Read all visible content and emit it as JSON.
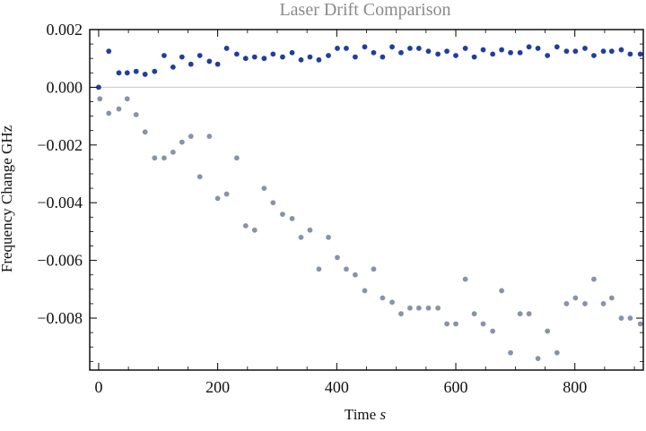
{
  "chart_data": {
    "type": "scatter",
    "title": "Laser Drift Comparison",
    "xlabel": "Time",
    "xlabel_unit": "s",
    "ylabel": "Frequency Change GHz",
    "xlim": [
      -15,
      915
    ],
    "ylim": [
      -0.0098,
      0.002
    ],
    "x_ticks": [
      0,
      200,
      400,
      600,
      800
    ],
    "x_tick_labels": [
      "0",
      "200",
      "400",
      "600",
      "800"
    ],
    "y_ticks": [
      0.002,
      0.0,
      -0.002,
      -0.004,
      -0.006,
      -0.008
    ],
    "y_tick_labels": [
      "0.002",
      "0.000",
      "−0.002",
      "−0.004",
      "−0.006",
      "−0.008"
    ],
    "zero_line": true,
    "grid": false,
    "colors": {
      "series1": "#1f3f9a",
      "series2": "#8793a8",
      "zero_line": "#c8c8c8",
      "frame": "#000000"
    },
    "series": [
      {
        "x": [
          0,
          17,
          34,
          48,
          63,
          78,
          94,
          110,
          125,
          140,
          155,
          170,
          186,
          200,
          215,
          232,
          247,
          262,
          278,
          293,
          309,
          325,
          340,
          355,
          370,
          386,
          401,
          416,
          431,
          447,
          462,
          477,
          493,
          508,
          523,
          538,
          554,
          570,
          585,
          600,
          616,
          631,
          646,
          662,
          677,
          692,
          708,
          723,
          738,
          754,
          770,
          786,
          801,
          817,
          832,
          848,
          862,
          878,
          893,
          910
        ],
        "y": [
          0.0,
          0.00125,
          0.0005,
          0.0005,
          0.00055,
          0.00045,
          0.00055,
          0.0011,
          0.0007,
          0.00105,
          0.0008,
          0.0011,
          0.0009,
          0.0008,
          0.00135,
          0.00115,
          0.001,
          0.00105,
          0.001,
          0.00115,
          0.00105,
          0.0012,
          0.00095,
          0.00105,
          0.00095,
          0.0011,
          0.00135,
          0.00135,
          0.00105,
          0.0014,
          0.0012,
          0.00105,
          0.0014,
          0.0012,
          0.00135,
          0.00135,
          0.00125,
          0.00115,
          0.00125,
          0.0011,
          0.00135,
          0.00105,
          0.0013,
          0.00115,
          0.0013,
          0.0012,
          0.0012,
          0.0014,
          0.00135,
          0.0011,
          0.0014,
          0.00125,
          0.00125,
          0.00135,
          0.0011,
          0.00125,
          0.00125,
          0.0013,
          0.00115,
          0.00115
        ]
      },
      {
        "x": [
          2,
          17,
          34,
          48,
          63,
          78,
          94,
          110,
          125,
          140,
          155,
          170,
          186,
          200,
          215,
          232,
          247,
          262,
          278,
          293,
          309,
          325,
          340,
          355,
          370,
          386,
          401,
          416,
          431,
          447,
          462,
          477,
          493,
          508,
          523,
          538,
          554,
          570,
          585,
          600,
          616,
          631,
          646,
          662,
          677,
          692,
          708,
          723,
          738,
          754,
          770,
          786,
          801,
          817,
          832,
          848,
          862,
          878,
          893,
          910
        ],
        "y": [
          -0.0004,
          -0.0009,
          -0.00075,
          -0.0004,
          -0.00095,
          -0.00155,
          -0.00245,
          -0.00245,
          -0.00225,
          -0.0019,
          -0.0017,
          -0.0031,
          -0.0017,
          -0.00385,
          -0.0037,
          -0.00245,
          -0.0048,
          -0.00495,
          -0.0035,
          -0.004,
          -0.0044,
          -0.00455,
          -0.0052,
          -0.00495,
          -0.0063,
          -0.0052,
          -0.0059,
          -0.0063,
          -0.0065,
          -0.00705,
          -0.0063,
          -0.0073,
          -0.00745,
          -0.00785,
          -0.00765,
          -0.00765,
          -0.00765,
          -0.00765,
          -0.0082,
          -0.0082,
          -0.00665,
          -0.00785,
          -0.0082,
          -0.00845,
          -0.00705,
          -0.0092,
          -0.00785,
          -0.00785,
          -0.0094,
          -0.00845,
          -0.0092,
          -0.0075,
          -0.0073,
          -0.0075,
          -0.00665,
          -0.0075,
          -0.0073,
          -0.008,
          -0.008,
          -0.0082
        ]
      }
    ]
  }
}
